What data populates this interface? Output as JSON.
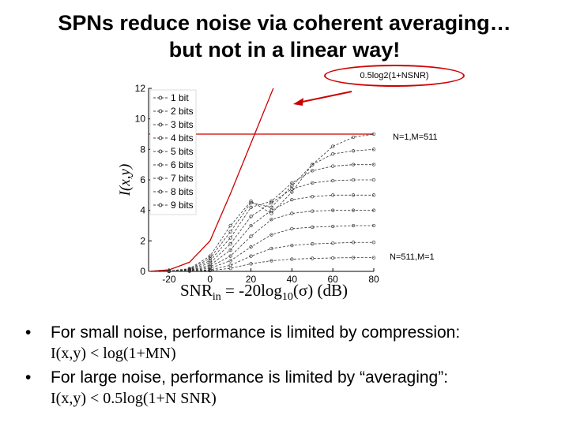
{
  "title": {
    "line1": "SPNs reduce noise via coherent averaging…",
    "line2": "but not in a linear way!"
  },
  "annotations": {
    "callout": "0.5log2(1+NSNR)",
    "top_label": "N=1,M=511",
    "bottom_label": "N=511,M=1"
  },
  "xlabel": {
    "prefix": "SNR",
    "sub1": "in",
    "mid": " = -20log",
    "sub2": "10",
    "suffix": "(σ) (dB)"
  },
  "bullets": [
    {
      "text": "For small noise, performance is limited by compression:",
      "formula": "I(x,y) < log(1+MN)"
    },
    {
      "text": "For large noise, performance is limited by “averaging”:",
      "formula": "I(x,y) < 0.5log(1+N SNR)"
    }
  ],
  "colors": {
    "accent": "#cc0000",
    "curves": "#333333"
  },
  "chart_data": {
    "type": "line",
    "xlabel": "SNR_in = -20log10(σ) (dB)",
    "ylabel": "I(x,y)",
    "xlim": [
      -30,
      80
    ],
    "ylim": [
      0,
      12
    ],
    "xticks": [
      -20,
      0,
      20,
      40,
      60,
      80
    ],
    "yticks": [
      0,
      2,
      4,
      6,
      8,
      10,
      12
    ],
    "legend_position": "top-left",
    "series": [
      {
        "name": "1 bit",
        "x": [
          -30,
          -20,
          -10,
          0,
          10,
          20,
          30,
          40,
          50,
          60,
          70,
          80
        ],
        "y": [
          0,
          0,
          0.02,
          0.05,
          0.2,
          0.5,
          0.7,
          0.8,
          0.85,
          0.88,
          0.9,
          0.9
        ]
      },
      {
        "name": "2 bits",
        "x": [
          -30,
          -20,
          -10,
          0,
          10,
          20,
          30,
          40,
          50,
          60,
          70,
          80
        ],
        "y": [
          0,
          0,
          0.03,
          0.1,
          0.4,
          1.0,
          1.5,
          1.7,
          1.8,
          1.85,
          1.9,
          1.9
        ]
      },
      {
        "name": "3 bits",
        "x": [
          -30,
          -20,
          -10,
          0,
          10,
          20,
          30,
          40,
          50,
          60,
          70,
          80
        ],
        "y": [
          0,
          0.01,
          0.05,
          0.2,
          0.7,
          1.6,
          2.4,
          2.8,
          2.9,
          2.95,
          3.0,
          3.0
        ]
      },
      {
        "name": "4 bits",
        "x": [
          -30,
          -20,
          -10,
          0,
          10,
          20,
          30,
          40,
          50,
          60,
          70,
          80
        ],
        "y": [
          0,
          0.01,
          0.06,
          0.3,
          1.0,
          2.3,
          3.4,
          3.8,
          3.95,
          4.0,
          4.0,
          4.0
        ]
      },
      {
        "name": "5 bits",
        "x": [
          -30,
          -20,
          -10,
          0,
          10,
          20,
          30,
          40,
          50,
          60,
          70,
          80
        ],
        "y": [
          0,
          0.01,
          0.08,
          0.4,
          1.4,
          3.0,
          4.0,
          4.7,
          4.9,
          5.0,
          5.0,
          5.0
        ]
      },
      {
        "name": "6 bits",
        "x": [
          -30,
          -20,
          -10,
          0,
          10,
          20,
          30,
          40,
          50,
          60,
          70,
          80
        ],
        "y": [
          0,
          0.02,
          0.1,
          0.55,
          1.8,
          3.6,
          4.5,
          5.4,
          5.8,
          5.95,
          6.0,
          6.0
        ]
      },
      {
        "name": "7 bits",
        "x": [
          -30,
          -20,
          -10,
          0,
          10,
          20,
          30,
          40,
          50,
          60,
          70,
          80
        ],
        "y": [
          0,
          0.02,
          0.12,
          0.7,
          2.2,
          4.2,
          4.6,
          5.8,
          6.6,
          6.9,
          7.0,
          7.0
        ]
      },
      {
        "name": "8 bits",
        "x": [
          -30,
          -20,
          -10,
          0,
          10,
          20,
          30,
          40,
          50,
          60,
          70,
          80
        ],
        "y": [
          0,
          0.02,
          0.15,
          0.85,
          2.6,
          4.5,
          4.2,
          5.6,
          7.0,
          7.7,
          7.9,
          8.0
        ]
      },
      {
        "name": "9 bits",
        "x": [
          -30,
          -20,
          -10,
          0,
          10,
          20,
          30,
          40,
          50,
          60,
          70,
          80
        ],
        "y": [
          0,
          0.03,
          0.18,
          1.0,
          3.0,
          4.6,
          3.8,
          5.2,
          7.0,
          8.2,
          8.8,
          9.0
        ]
      }
    ],
    "bound_curve": {
      "x": [
        -30,
        -20,
        -10,
        0,
        10,
        20,
        30,
        40
      ],
      "y": [
        0.0,
        0.1,
        0.6,
        2.0,
        5.1,
        8.4,
        11.7,
        15.0
      ]
    },
    "compression_limit": 9
  }
}
